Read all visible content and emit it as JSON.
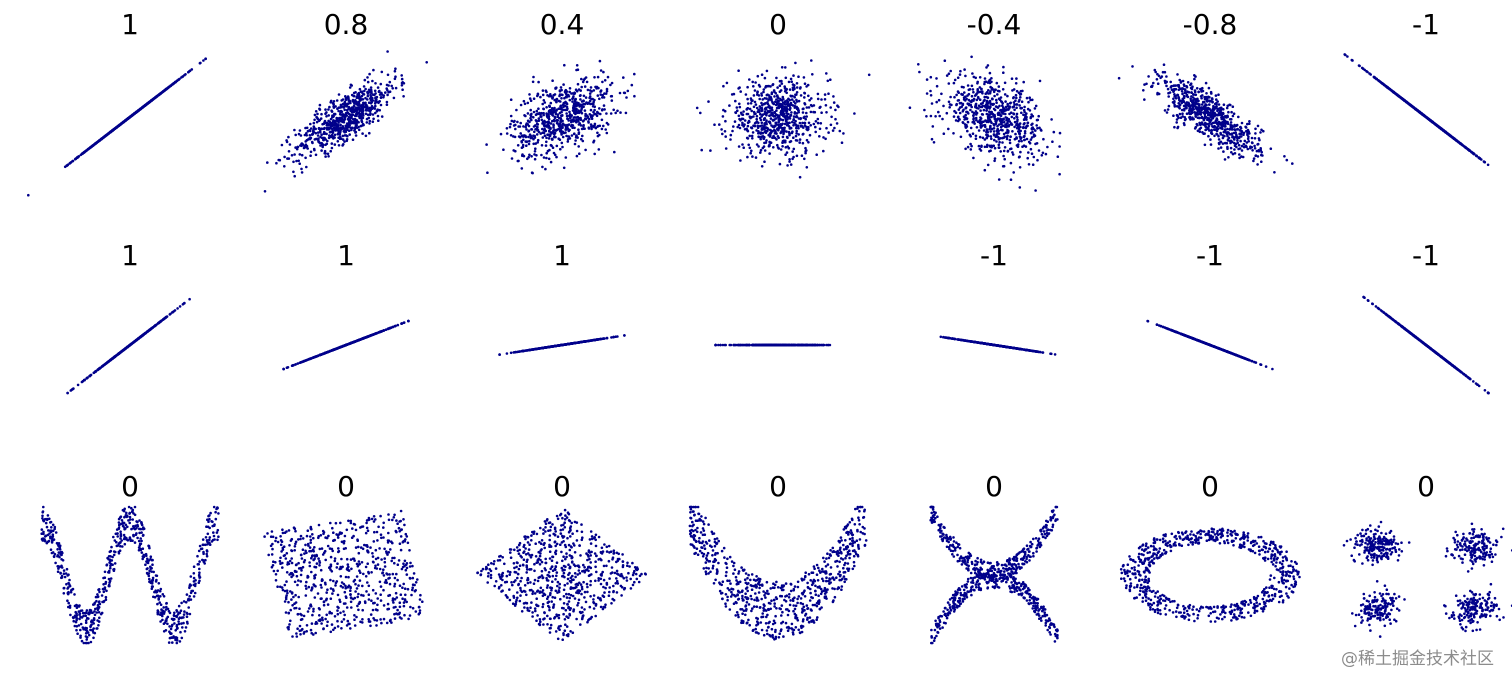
{
  "watermark": "@稀土掘金技术社区",
  "point_color": "#00008b",
  "chart_data": {
    "type": "scatter",
    "grid": false,
    "axes_visible": false,
    "rows": [
      {
        "panels": [
          {
            "label": "1",
            "pattern": "correlated",
            "r": 1
          },
          {
            "label": "0.8",
            "pattern": "correlated",
            "r": 0.8
          },
          {
            "label": "0.4",
            "pattern": "correlated",
            "r": 0.4
          },
          {
            "label": "0",
            "pattern": "correlated",
            "r": 0
          },
          {
            "label": "-0.4",
            "pattern": "correlated",
            "r": -0.4
          },
          {
            "label": "-0.8",
            "pattern": "correlated",
            "r": -0.8
          },
          {
            "label": "-1",
            "pattern": "correlated",
            "r": -1
          }
        ]
      },
      {
        "panels": [
          {
            "label": "1",
            "pattern": "line",
            "slope": 1
          },
          {
            "label": "1",
            "pattern": "line",
            "slope": 0.5
          },
          {
            "label": "1",
            "pattern": "line",
            "slope": 0.2
          },
          {
            "label": "",
            "pattern": "line",
            "slope": 0
          },
          {
            "label": "-1",
            "pattern": "line",
            "slope": -0.2
          },
          {
            "label": "-1",
            "pattern": "line",
            "slope": -0.5
          },
          {
            "label": "-1",
            "pattern": "line",
            "slope": -1
          }
        ]
      },
      {
        "panels": [
          {
            "label": "0",
            "pattern": "wave"
          },
          {
            "label": "0",
            "pattern": "rotated-square"
          },
          {
            "label": "0",
            "pattern": "diamond"
          },
          {
            "label": "0",
            "pattern": "parabola"
          },
          {
            "label": "0",
            "pattern": "x-shape"
          },
          {
            "label": "0",
            "pattern": "ring"
          },
          {
            "label": "0",
            "pattern": "four-clusters"
          }
        ]
      }
    ]
  }
}
